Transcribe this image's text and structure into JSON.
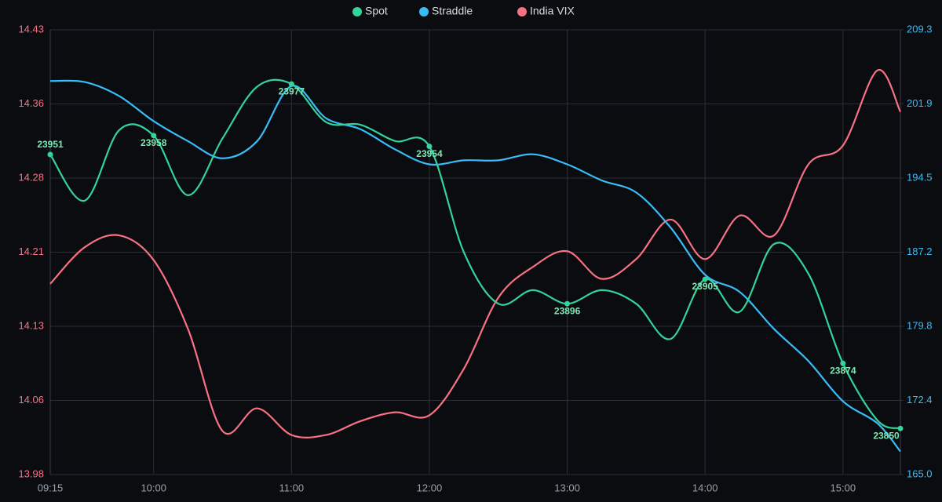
{
  "chart_data": {
    "type": "line",
    "x": [
      555,
      570,
      585,
      600,
      615,
      630,
      645,
      660,
      675,
      690,
      705,
      720,
      735,
      750,
      765,
      780,
      795,
      810,
      825,
      840,
      855,
      870,
      885,
      900,
      915,
      925
    ],
    "xlim": [
      555,
      925
    ],
    "xticks": [
      {
        "value": 555,
        "label": "09:15"
      },
      {
        "value": 600,
        "label": "10:00"
      },
      {
        "value": 660,
        "label": "11:00"
      },
      {
        "value": 720,
        "label": "12:00"
      },
      {
        "value": 780,
        "label": "13:00"
      },
      {
        "value": 840,
        "label": "14:00"
      },
      {
        "value": 900,
        "label": "15:00"
      }
    ],
    "ylim": [
      13.98,
      14.43
    ],
    "yticks": [
      13.98,
      {
        "value": 14.055,
        "label": "14.06"
      },
      14.13,
      {
        "value": 14.205,
        "label": "14.21"
      },
      14.28,
      {
        "value": 14.355,
        "label": "14.36"
      },
      14.43
    ],
    "y2lim": [
      165,
      209.3
    ],
    "y2ticks": [
      {
        "value": 165,
        "label": "165.0"
      },
      {
        "value": 172.38,
        "label": "172.4"
      },
      {
        "value": 179.77,
        "label": "179.8"
      },
      {
        "value": 187.15,
        "label": "187.2"
      },
      {
        "value": 194.53,
        "label": "194.5"
      },
      {
        "value": 201.92,
        "label": "201.9"
      },
      209.3
    ],
    "grid": true,
    "legend": "top",
    "series": [
      {
        "name": "Spot",
        "color": "#34d399",
        "axis": "spot",
        "lim": [
          23833,
          23997
        ],
        "values": [
          23951,
          23934,
          23960,
          23958,
          23936,
          23957,
          23976,
          23977,
          23963,
          23962,
          23956,
          23954,
          23915,
          23896,
          23901,
          23896,
          23901,
          23896,
          23883,
          23905,
          23893,
          23918,
          23907,
          23874,
          23853,
          23850
        ],
        "value_labels": [
          "23951",
          null,
          null,
          "23958",
          null,
          null,
          null,
          "23977",
          null,
          null,
          null,
          "23954",
          null,
          null,
          null,
          "23896",
          null,
          null,
          null,
          "23905",
          null,
          null,
          null,
          "23874",
          null,
          "23850"
        ]
      },
      {
        "name": "Straddle",
        "color": "#38bdf8",
        "axis": "y2",
        "values": [
          204.2,
          204.1,
          202.7,
          200.2,
          198.2,
          196.5,
          198.2,
          203.7,
          200.5,
          199.4,
          197.4,
          195.9,
          196.3,
          196.3,
          196.9,
          195.9,
          194.3,
          193.1,
          189.6,
          184.9,
          183.2,
          179.5,
          176.3,
          172.3,
          170.1,
          167.3
        ]
      },
      {
        "name": "India VIX",
        "color": "#f87185",
        "axis": "y",
        "values": [
          14.173,
          14.21,
          14.222,
          14.197,
          14.127,
          14.024,
          14.047,
          14.02,
          14.02,
          14.034,
          14.043,
          14.04,
          14.087,
          14.159,
          14.19,
          14.206,
          14.178,
          14.198,
          14.238,
          14.198,
          14.242,
          14.222,
          14.294,
          14.313,
          14.389,
          14.347
        ]
      }
    ]
  }
}
